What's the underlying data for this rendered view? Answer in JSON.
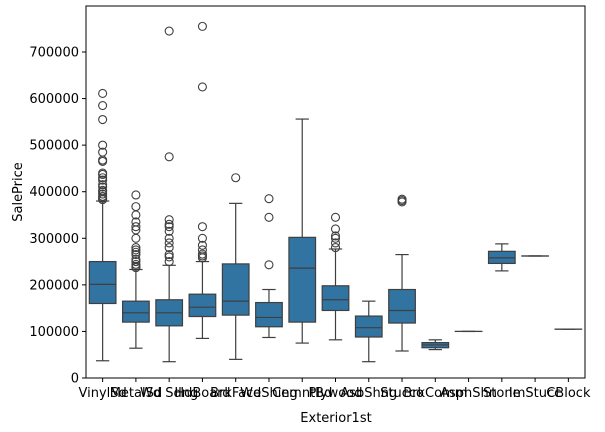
{
  "chart_data": {
    "type": "box",
    "xlabel": "Exterior1st",
    "ylabel": "SalePrice",
    "ylim": [
      0,
      790000
    ],
    "yticks": [
      0,
      100000,
      200000,
      300000,
      400000,
      500000,
      600000,
      700000
    ],
    "ytick_labels": [
      "0",
      "100000",
      "200000",
      "300000",
      "400000",
      "500000",
      "600000",
      "700000"
    ],
    "box_color": "#3274a1",
    "line_color": "#3f3f3f",
    "boxes": [
      {
        "category": "VinylSd",
        "whisker_low": 37000,
        "q1": 160000,
        "median": 201000,
        "q3": 250000,
        "whisker_high": 380000,
        "outliers": [
          383000,
          386000,
          390000,
          395000,
          400000,
          403000,
          410000,
          415000,
          425000,
          430000,
          437000,
          440000,
          465000,
          468000,
          485000,
          500000,
          555000,
          585000,
          611000
        ]
      },
      {
        "category": "MetalSd",
        "whisker_low": 64000,
        "q1": 120000,
        "median": 140000,
        "q3": 165000,
        "whisker_high": 233000,
        "outliers": [
          237000,
          240000,
          244000,
          250000,
          255000,
          265000,
          270000,
          275000,
          280000,
          300000,
          318000,
          325000,
          335000,
          350000,
          368000,
          393000
        ]
      },
      {
        "category": "Wd Sdng",
        "whisker_low": 35000,
        "q1": 112000,
        "median": 140000,
        "q3": 168000,
        "whisker_high": 242000,
        "outliers": [
          250000,
          260000,
          265000,
          280000,
          290000,
          300000,
          315000,
          325000,
          330000,
          340000,
          475000,
          745000
        ]
      },
      {
        "category": "HdBoard",
        "whisker_low": 85000,
        "q1": 132000,
        "median": 152000,
        "q3": 180000,
        "whisker_high": 250000,
        "outliers": [
          258000,
          262000,
          266000,
          275000,
          285000,
          300000,
          325000,
          625000,
          755000
        ]
      },
      {
        "category": "BrkFace",
        "whisker_low": 40000,
        "q1": 135000,
        "median": 165000,
        "q3": 245000,
        "whisker_high": 375000,
        "outliers": [
          430000
        ]
      },
      {
        "category": "WdShing",
        "whisker_low": 87000,
        "q1": 110000,
        "median": 130000,
        "q3": 162000,
        "whisker_high": 190000,
        "outliers": [
          243000,
          345000,
          385000
        ]
      },
      {
        "category": "CemntBd",
        "whisker_low": 75000,
        "q1": 120000,
        "median": 236000,
        "q3": 302000,
        "whisker_high": 556000,
        "outliers": []
      },
      {
        "category": "Plywood",
        "whisker_low": 82000,
        "q1": 145000,
        "median": 168000,
        "q3": 198000,
        "whisker_high": 277000,
        "outliers": [
          280000,
          290000,
          300000,
          305000,
          320000,
          345000
        ]
      },
      {
        "category": "AsbShng",
        "whisker_low": 35000,
        "q1": 88000,
        "median": 108000,
        "q3": 133000,
        "whisker_high": 165000,
        "outliers": []
      },
      {
        "category": "Stucco",
        "whisker_low": 58000,
        "q1": 118000,
        "median": 145000,
        "q3": 190000,
        "whisker_high": 265000,
        "outliers": [
          378000,
          381000,
          384000
        ]
      },
      {
        "category": "BrkComm",
        "whisker_low": 61000,
        "q1": 65000,
        "median": 71000,
        "q3": 76000,
        "whisker_high": 82000,
        "outliers": []
      },
      {
        "category": "AsphShn",
        "whisker_low": 100000,
        "q1": 100000,
        "median": 100000,
        "q3": 100000,
        "whisker_high": 100000,
        "outliers": []
      },
      {
        "category": "Stone",
        "whisker_low": 230000,
        "q1": 246000,
        "median": 258000,
        "q3": 272000,
        "whisker_high": 288000,
        "outliers": []
      },
      {
        "category": "ImStucc",
        "whisker_low": 262000,
        "q1": 262000,
        "median": 262000,
        "q3": 262000,
        "whisker_high": 262000,
        "outliers": []
      },
      {
        "category": "CBlock",
        "whisker_low": 105000,
        "q1": 105000,
        "median": 105000,
        "q3": 105000,
        "whisker_high": 105000,
        "outliers": []
      }
    ]
  }
}
